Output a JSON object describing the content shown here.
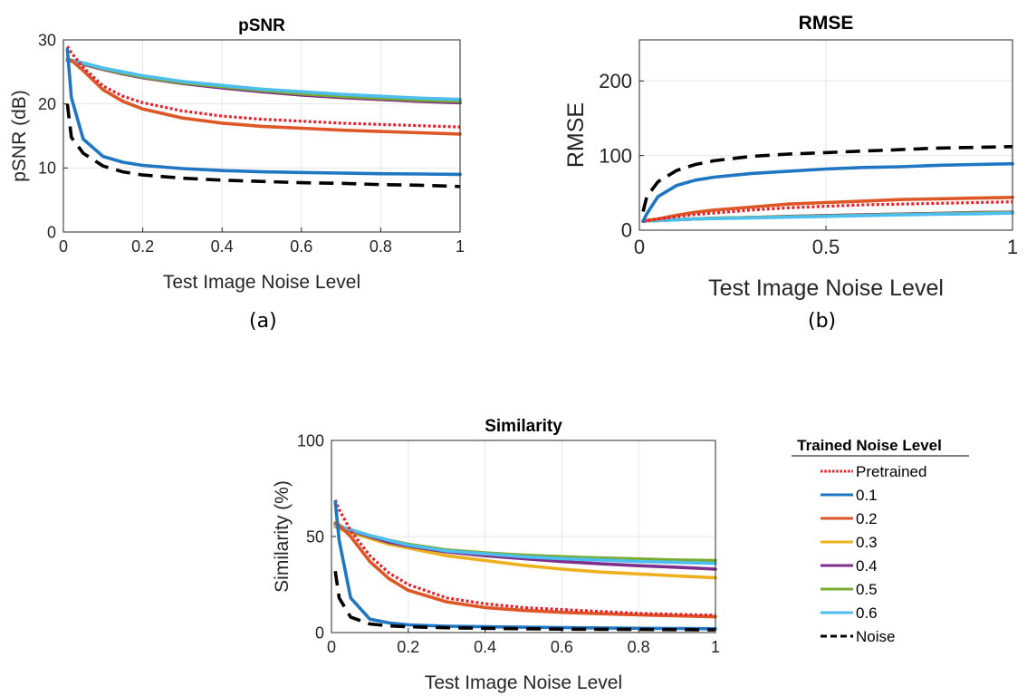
{
  "figure": {
    "captions": [
      "(a)",
      "(b)"
    ],
    "legend": {
      "title": "Trained Noise Level",
      "entries": [
        {
          "label": "Pretrained",
          "color": "#e8212a",
          "style": "dotted"
        },
        {
          "label": "0.1",
          "color": "#1f77c4",
          "style": "solid"
        },
        {
          "label": "0.2",
          "color": "#dd5727",
          "style": "solid"
        },
        {
          "label": "0.3",
          "color": "#edb11f",
          "style": "solid"
        },
        {
          "label": "0.4",
          "color": "#7e2f8e",
          "style": "solid"
        },
        {
          "label": "0.5",
          "color": "#77ac30",
          "style": "solid"
        },
        {
          "label": "0.6",
          "color": "#4dbeee",
          "style": "solid"
        },
        {
          "label": "Noise",
          "color": "#000000",
          "style": "dashed"
        }
      ]
    }
  },
  "chart_data": [
    {
      "type": "line",
      "title": "pSNR",
      "xlabel": "Test Image Noise Level",
      "ylabel": "pSNR (dB)",
      "xlim": [
        0,
        1
      ],
      "ylim": [
        0,
        30
      ],
      "xticks": [
        "0",
        "0.2",
        "0.4",
        "0.6",
        "0.8",
        "1"
      ],
      "yticks": [
        "0",
        "10",
        "20",
        "30"
      ],
      "grid": true,
      "x": [
        0.01,
        0.02,
        0.05,
        0.1,
        0.15,
        0.2,
        0.3,
        0.4,
        0.5,
        0.6,
        0.7,
        0.8,
        0.9,
        1.0
      ],
      "series": [
        {
          "name": "Pretrained",
          "values": [
            29,
            28,
            25.7,
            22.8,
            21.2,
            20.2,
            18.9,
            18.1,
            17.6,
            17.3,
            17.0,
            16.8,
            16.6,
            16.4
          ]
        },
        {
          "name": "0.1",
          "values": [
            28.5,
            21,
            14.5,
            11.8,
            10.9,
            10.4,
            9.9,
            9.6,
            9.4,
            9.3,
            9.2,
            9.1,
            9.05,
            9.0
          ]
        },
        {
          "name": "0.2",
          "values": [
            27,
            26.8,
            25.2,
            22.2,
            20.4,
            19.2,
            17.8,
            17.0,
            16.5,
            16.2,
            15.9,
            15.7,
            15.5,
            15.3
          ]
        },
        {
          "name": "0.3",
          "values": [
            26.8,
            26.7,
            26.2,
            25.4,
            24.7,
            24.1,
            23.2,
            22.5,
            21.9,
            21.4,
            21.0,
            20.7,
            20.4,
            20.2
          ]
        },
        {
          "name": "0.4",
          "values": [
            26.8,
            26.7,
            26.2,
            25.4,
            24.7,
            24.1,
            23.2,
            22.5,
            21.9,
            21.4,
            21.0,
            20.7,
            20.4,
            20.2
          ]
        },
        {
          "name": "0.5",
          "values": [
            26.9,
            26.8,
            26.3,
            25.5,
            24.8,
            24.2,
            23.3,
            22.7,
            22.1,
            21.6,
            21.2,
            20.9,
            20.6,
            20.4
          ]
        },
        {
          "name": "0.6",
          "values": [
            26.9,
            26.8,
            26.4,
            25.6,
            25.0,
            24.4,
            23.5,
            22.9,
            22.3,
            21.9,
            21.5,
            21.2,
            20.9,
            20.7
          ]
        },
        {
          "name": "Noise",
          "values": [
            20,
            14.8,
            12.3,
            10.3,
            9.4,
            8.9,
            8.4,
            8.1,
            7.9,
            7.7,
            7.6,
            7.4,
            7.3,
            7.1
          ]
        }
      ]
    },
    {
      "type": "line",
      "title": "RMSE",
      "xlabel": "Test Image Noise Level",
      "ylabel": "RMSE",
      "xlim": [
        0,
        1
      ],
      "ylim": [
        0,
        255
      ],
      "xticks": [
        "0",
        "0.5",
        "1"
      ],
      "yticks": [
        "0",
        "100",
        "200"
      ],
      "grid": true,
      "x": [
        0.01,
        0.02,
        0.05,
        0.1,
        0.15,
        0.2,
        0.3,
        0.4,
        0.5,
        0.6,
        0.7,
        0.8,
        0.9,
        1.0
      ],
      "series": [
        {
          "name": "Pretrained",
          "values": [
            12,
            13,
            15,
            18,
            21,
            23,
            27,
            30,
            32,
            34,
            35,
            36,
            37,
            38
          ]
        },
        {
          "name": "0.1",
          "values": [
            12,
            22,
            45,
            60,
            67,
            71,
            76,
            79,
            82,
            84,
            85,
            87,
            88,
            89
          ]
        },
        {
          "name": "0.2",
          "values": [
            12,
            13,
            15,
            20,
            24,
            27,
            31,
            35,
            37,
            39,
            41,
            42,
            43,
            44
          ]
        },
        {
          "name": "0.3",
          "values": [
            12,
            12.5,
            13,
            14,
            15,
            16,
            17,
            18.5,
            19.5,
            20.5,
            21.5,
            22.5,
            23.5,
            24
          ]
        },
        {
          "name": "0.4",
          "values": [
            12,
            12.5,
            13,
            14,
            15,
            16,
            17,
            18.5,
            19.5,
            20.5,
            21.5,
            22.5,
            23.5,
            24
          ]
        },
        {
          "name": "0.5",
          "values": [
            12,
            12.5,
            13,
            14,
            15,
            16,
            17,
            18,
            19,
            20,
            21,
            22,
            23,
            23.5
          ]
        },
        {
          "name": "0.6",
          "values": [
            12,
            12.5,
            13,
            14,
            15,
            15.5,
            16.5,
            17.5,
            18.5,
            19.5,
            20.5,
            21.5,
            22,
            23
          ]
        },
        {
          "name": "Noise",
          "values": [
            25,
            45,
            65,
            80,
            88,
            93,
            99,
            102,
            104,
            106,
            108,
            110,
            111,
            112
          ]
        }
      ]
    },
    {
      "type": "line",
      "title": "Similarity",
      "xlabel": "Test Image Noise Level",
      "ylabel": "Similarity (%)",
      "xlim": [
        0,
        1
      ],
      "ylim": [
        0,
        100
      ],
      "xticks": [
        "0",
        "0.2",
        "0.4",
        "0.6",
        "0.8",
        "1"
      ],
      "yticks": [
        "0",
        "50",
        "100"
      ],
      "grid": true,
      "x": [
        0.01,
        0.02,
        0.05,
        0.1,
        0.15,
        0.2,
        0.3,
        0.4,
        0.5,
        0.6,
        0.7,
        0.8,
        0.9,
        1.0
      ],
      "series": [
        {
          "name": "Pretrained",
          "values": [
            69,
            64,
            53,
            40,
            31,
            25,
            18,
            15,
            13,
            12,
            11,
            10,
            9.5,
            9
          ]
        },
        {
          "name": "0.1",
          "values": [
            68,
            48,
            18,
            7,
            5,
            4,
            3.3,
            3,
            2.8,
            2.6,
            2.4,
            2.2,
            2.1,
            2.0
          ]
        },
        {
          "name": "0.2",
          "values": [
            57,
            56,
            50,
            37,
            28,
            22,
            16,
            13,
            11.5,
            10.5,
            9.8,
            9.2,
            8.7,
            8.2
          ]
        },
        {
          "name": "0.3",
          "values": [
            55,
            54,
            52,
            49,
            46,
            44,
            40,
            37.5,
            35,
            33,
            31.5,
            30.5,
            29.5,
            28.5
          ]
        },
        {
          "name": "0.4",
          "values": [
            56,
            55,
            53,
            50,
            47,
            45,
            42,
            40,
            38.5,
            37,
            35.8,
            34.8,
            34,
            33
          ]
        },
        {
          "name": "0.5",
          "values": [
            56,
            55.5,
            53.5,
            50.5,
            48,
            46,
            43,
            41.5,
            40.3,
            39.5,
            38.8,
            38.3,
            37.8,
            37.5
          ]
        },
        {
          "name": "0.6",
          "values": [
            56,
            55.5,
            53.5,
            50.5,
            48,
            45.5,
            42.5,
            41,
            39.5,
            38.5,
            37.8,
            37,
            36.5,
            36
          ]
        },
        {
          "name": "Noise",
          "values": [
            32,
            18,
            8,
            4.5,
            3.5,
            3.0,
            2.5,
            2.2,
            2.0,
            1.8,
            1.7,
            1.6,
            1.5,
            1.4
          ]
        }
      ]
    }
  ]
}
